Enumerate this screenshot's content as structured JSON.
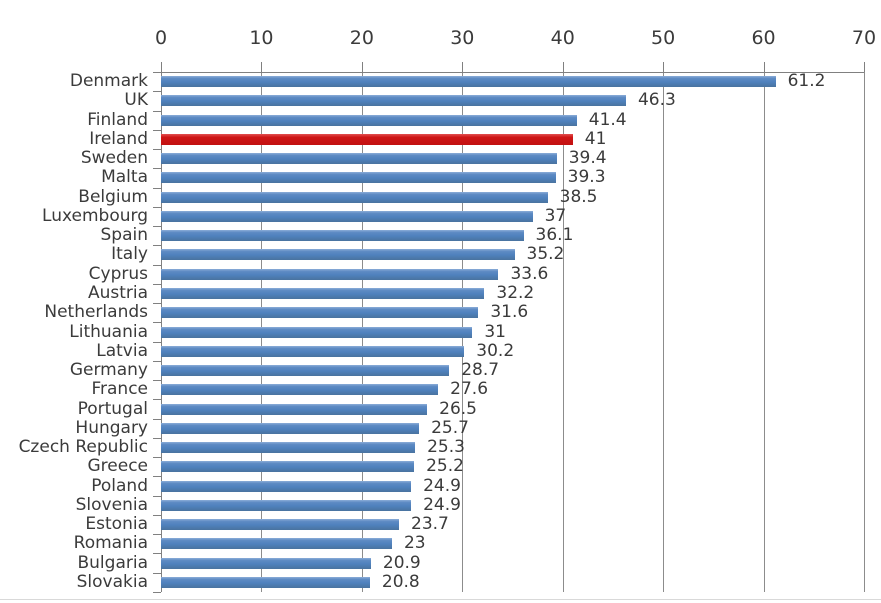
{
  "chart_data": {
    "type": "bar",
    "orientation": "horizontal",
    "title": "",
    "xlabel": "",
    "ylabel": "",
    "xlim": [
      0,
      70
    ],
    "xticks": [
      "0",
      "10",
      "20",
      "30",
      "40",
      "50",
      "60",
      "70"
    ],
    "xtick_values": [
      0,
      10,
      20,
      30,
      40,
      50,
      60,
      70
    ],
    "grid": true,
    "legend": false,
    "axis_position": "top",
    "categories": [
      "Denmark",
      "UK",
      "Finland",
      "Ireland",
      "Sweden",
      "Malta",
      "Belgium",
      "Luxembourg",
      "Spain",
      "Italy",
      "Cyprus",
      "Austria",
      "Netherlands",
      "Lithuania",
      "Latvia",
      "Germany",
      "France",
      "Portugal",
      "Hungary",
      "Czech Republic",
      "Greece",
      "Poland",
      "Slovenia",
      "Estonia",
      "Romania",
      "Bulgaria",
      "Slovakia"
    ],
    "values": [
      61.2,
      46.3,
      41.4,
      41,
      39.4,
      39.3,
      38.5,
      37,
      36.1,
      35.2,
      33.6,
      32.2,
      31.6,
      31,
      30.2,
      28.7,
      27.6,
      26.5,
      25.7,
      25.3,
      25.2,
      24.9,
      24.9,
      23.7,
      23,
      20.9,
      20.8
    ],
    "value_labels": [
      "61.2",
      "46.3",
      "41.4",
      "41",
      "39.4",
      "39.3",
      "38.5",
      "37",
      "36.1",
      "35.2",
      "33.6",
      "32.2",
      "31.6",
      "31",
      "30.2",
      "28.7",
      "27.6",
      "26.5",
      "25.7",
      "25.3",
      "25.2",
      "24.9",
      "24.9",
      "23.7",
      "23",
      "20.9",
      "20.8"
    ],
    "highlighted_category": "Ireland",
    "colors": {
      "bar": "#4F81BD",
      "highlight": "#C21111",
      "gridline": "#8C8C8C",
      "axis": "#808080",
      "text": "#3B3B3B",
      "background": "#FFFFFF"
    }
  }
}
